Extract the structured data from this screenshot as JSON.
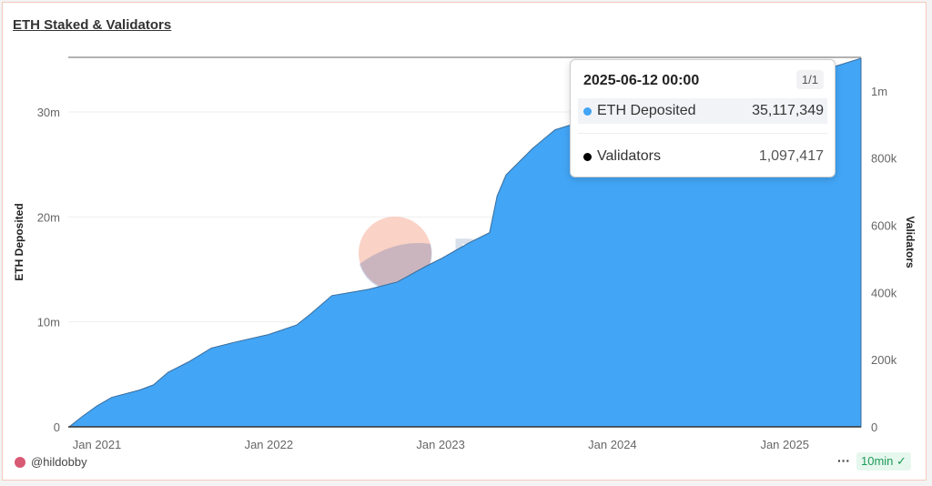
{
  "title": "ETH Staked & Validators",
  "chart_data": {
    "type": "area",
    "xlabel": "",
    "ylabel": "ETH Deposited",
    "y2label": "Validators",
    "x_ticks": [
      "Jan 2021",
      "Jan 2022",
      "Jan 2023",
      "Jan 2024",
      "Jan 2025"
    ],
    "y_ticks": [
      "0",
      "10m",
      "20m",
      "30m"
    ],
    "y2_ticks": [
      "0",
      "200k",
      "400k",
      "600k",
      "800k",
      "1m"
    ],
    "ylim": [
      0,
      35200000
    ],
    "y2lim": [
      0,
      1100000
    ],
    "xlim": [
      "2020-11-01",
      "2025-06-12"
    ],
    "grid": true,
    "colors": {
      "eth_deposited": "#42a5f5",
      "validators": "#000000"
    },
    "series": [
      {
        "name": "ETH Deposited",
        "x": [
          "2020-11-03",
          "2020-12-01",
          "2021-01-01",
          "2021-02-01",
          "2021-04-01",
          "2021-05-01",
          "2021-06-01",
          "2021-07-15",
          "2021-09-01",
          "2021-10-15",
          "2022-01-01",
          "2022-03-01",
          "2022-04-01",
          "2022-05-15",
          "2022-08-01",
          "2022-10-01",
          "2022-12-01",
          "2023-01-01",
          "2023-03-01",
          "2023-04-15",
          "2023-05-01",
          "2023-05-20",
          "2023-07-15",
          "2023-09-01",
          "2024-01-01",
          "2024-04-01",
          "2024-08-15",
          "2025-01-01",
          "2025-04-15",
          "2025-06-12"
        ],
        "values": [
          0,
          1000000,
          2000000,
          2800000,
          3500000,
          4000000,
          5200000,
          6200000,
          7500000,
          8000000,
          8800000,
          9700000,
          10800000,
          12500000,
          13100000,
          13800000,
          15300000,
          16000000,
          17500000,
          18500000,
          22000000,
          24000000,
          26500000,
          28300000,
          30000000,
          31500000,
          33000000,
          34000000,
          34300000,
          35117349
        ]
      }
    ]
  },
  "watermark": "Dune",
  "tooltip": {
    "date": "2025-06-12 00:00",
    "page": "1/1",
    "rows": [
      {
        "label": "ETH Deposited",
        "value": "35,117,349",
        "color": "#42a5f5"
      },
      {
        "label": "Validators",
        "value": "1,097,417",
        "color": "#000000"
      }
    ]
  },
  "footer": {
    "user": "@hildobby",
    "more": "···",
    "refresh": "10min"
  }
}
